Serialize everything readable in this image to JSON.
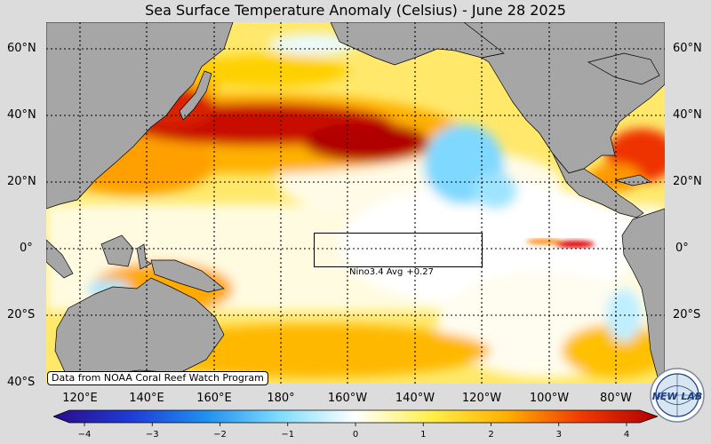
{
  "title": "Sea Surface Temperature Anomaly (Celsius) - June 28 2025",
  "lat_labels": [
    "60°N",
    "40°N",
    "20°N",
    "0°",
    "20°S",
    "40°S"
  ],
  "lon_labels": [
    "120°E",
    "140°E",
    "160°E",
    "180°",
    "160°W",
    "140°W",
    "120°W",
    "100°W",
    "80°W"
  ],
  "credit": "Data from NOAA Coral Reef Watch Program",
  "nino": {
    "label": "Nino3.4 Avg",
    "value": "+0.27"
  },
  "colorbar": {
    "ticks": [
      "−4",
      "−3",
      "−2",
      "−1",
      "0",
      "1",
      "2",
      "3",
      "4"
    ],
    "range": [
      -4,
      4
    ],
    "colors": [
      "#2b0b8c",
      "#1e3ad6",
      "#1f8ef0",
      "#7fdcff",
      "#ffffff",
      "#fff04a",
      "#ffb000",
      "#f03800",
      "#b00000"
    ]
  },
  "logo": {
    "text": "NEW LAB",
    "icon": "newlab-globe-logo"
  },
  "colors": {
    "land": "#a6a6a6",
    "background": "#dcdcdc"
  }
}
